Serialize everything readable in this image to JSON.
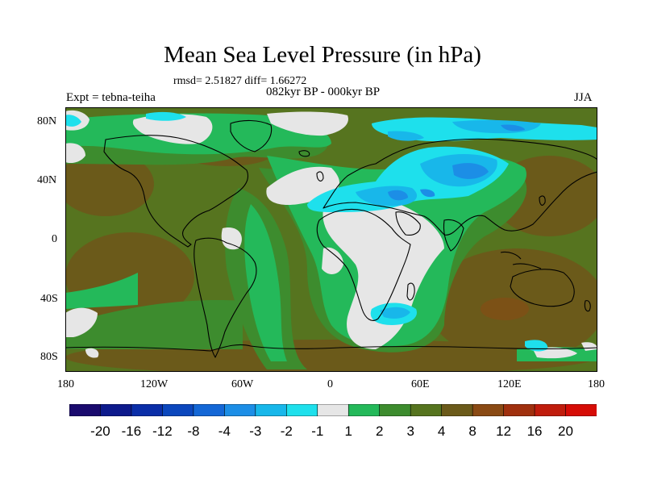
{
  "title": "Mean Sea Level Pressure (in hPa)",
  "stats_line": "rmsd= 2.51827 diff= 1.66272",
  "left_label": "Expt = tebna-teiha",
  "center_label": "082kyr BP - 000kyr BP",
  "right_label": "JJA",
  "lat_ticks": [
    "80N",
    "40N",
    "0",
    "40S",
    "80S"
  ],
  "lon_ticks": [
    "180",
    "120W",
    "60W",
    "0",
    "60E",
    "120E",
    "180"
  ],
  "colorbar": {
    "labels": [
      "-20",
      "-16",
      "-12",
      "-8",
      "-4",
      "-3",
      "-2",
      "-1",
      "1",
      "2",
      "3",
      "4",
      "8",
      "12",
      "16",
      "20"
    ],
    "colors": [
      "#1a0a6e",
      "#0d1a8c",
      "#0a2ea8",
      "#0b47bd",
      "#1467d6",
      "#1c8ee6",
      "#18b7ea",
      "#1ee0ec",
      "#e6e6e6",
      "#24b95a",
      "#3d8c2e",
      "#56741f",
      "#6b5a1a",
      "#8a4a14",
      "#a0300e",
      "#c01c0c",
      "#d60c06"
    ]
  }
}
